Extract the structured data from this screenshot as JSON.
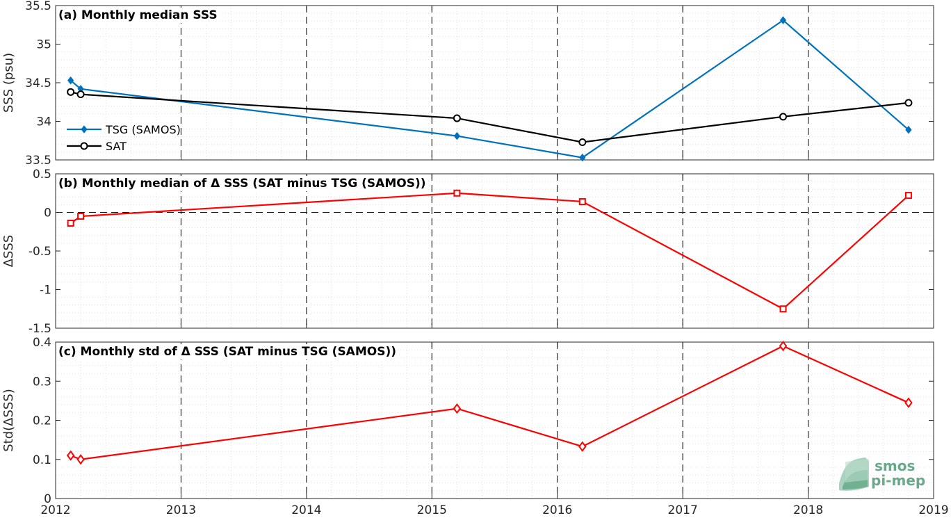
{
  "chart_data": [
    {
      "type": "line",
      "title": "(a) Monthly median SSS",
      "ylabel": "SSS (psu)",
      "xlim": [
        2012,
        2019
      ],
      "ylim": [
        33.5,
        35.5
      ],
      "x_ticks": [
        "2012",
        "2013",
        "2014",
        "2015",
        "2016",
        "2017",
        "2018",
        "2019"
      ],
      "y_ticks": [
        "33.5",
        "34",
        "34.5",
        "35",
        "35.5"
      ],
      "y_tick_values": [
        33.5,
        34,
        34.5,
        35,
        35.5
      ],
      "grid": true,
      "legend_position": "left",
      "series": [
        {
          "name": "TSG (SAMOS)",
          "color": "#0072bd",
          "marker": "diamond-filled",
          "x": [
            2012.12,
            2012.2,
            2015.2,
            2016.2,
            2017.8,
            2018.8
          ],
          "values": [
            34.53,
            34.42,
            33.81,
            33.53,
            35.31,
            33.89
          ]
        },
        {
          "name": "SAT",
          "color": "#000000",
          "marker": "circle",
          "x": [
            2012.12,
            2012.2,
            2015.2,
            2016.2,
            2017.8,
            2018.8
          ],
          "values": [
            34.38,
            34.35,
            34.04,
            33.73,
            34.06,
            34.24
          ]
        }
      ]
    },
    {
      "type": "line",
      "title": "(b) Monthly median of Δ SSS (SAT minus TSG (SAMOS))",
      "ylabel": "ΔSSS",
      "xlim": [
        2012,
        2019
      ],
      "ylim": [
        -1.5,
        0.5
      ],
      "x_ticks": [
        "2012",
        "2013",
        "2014",
        "2015",
        "2016",
        "2017",
        "2018",
        "2019"
      ],
      "y_ticks": [
        "-1.5",
        "-1",
        "-0.5",
        "0",
        "0.5"
      ],
      "y_tick_values": [
        -1.5,
        -1,
        -0.5,
        0,
        0.5
      ],
      "grid": true,
      "zero_line": true,
      "series": [
        {
          "color": "#ff0000",
          "marker": "square",
          "x": [
            2012.12,
            2012.2,
            2015.2,
            2016.2,
            2017.8,
            2018.8
          ],
          "values": [
            -0.14,
            -0.05,
            0.25,
            0.14,
            -1.25,
            0.22
          ]
        }
      ]
    },
    {
      "type": "line",
      "title": "(c) Monthly std of Δ SSS (SAT minus TSG (SAMOS))",
      "ylabel": "Std(ΔSSS)",
      "xlim": [
        2012,
        2019
      ],
      "ylim": [
        0,
        0.4
      ],
      "x_ticks": [
        "2012",
        "2013",
        "2014",
        "2015",
        "2016",
        "2017",
        "2018",
        "2019"
      ],
      "y_ticks": [
        "0",
        "0.1",
        "0.2",
        "0.3",
        "0.4"
      ],
      "y_tick_values": [
        0,
        0.1,
        0.2,
        0.3,
        0.4
      ],
      "grid": true,
      "series": [
        {
          "color": "#ff0000",
          "marker": "diamond",
          "x": [
            2012.12,
            2012.2,
            2015.2,
            2016.2,
            2017.8,
            2018.8
          ],
          "values": [
            0.11,
            0.1,
            0.23,
            0.133,
            0.39,
            0.245
          ]
        }
      ]
    }
  ],
  "logo": {
    "line1": "smos",
    "line2": "pi-mep"
  }
}
